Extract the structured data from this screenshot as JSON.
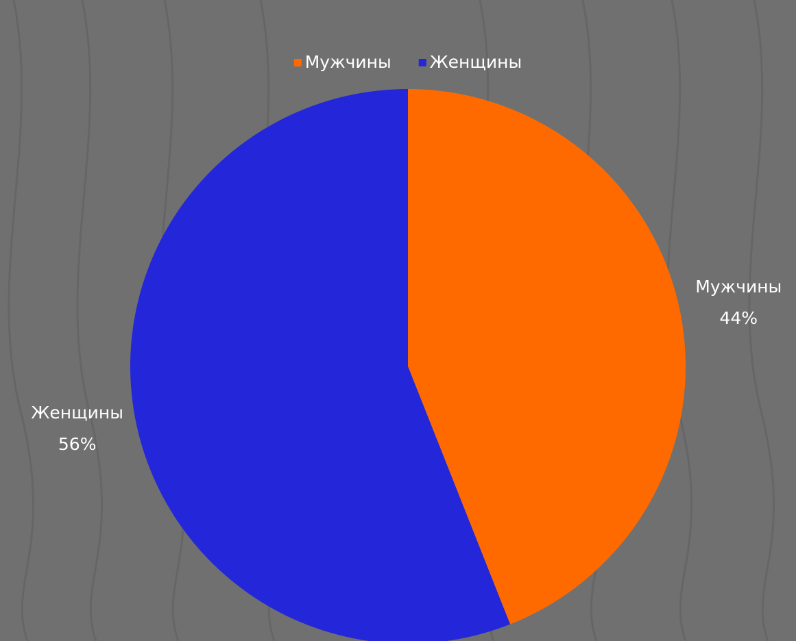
{
  "chart_data": {
    "type": "pie",
    "categories": [
      "Мужчины",
      "Женщины"
    ],
    "values": [
      44,
      56
    ],
    "value_labels": [
      "44%",
      "56%"
    ],
    "colors": [
      "#ff6a00",
      "#2326d9"
    ],
    "legend": "top"
  }
}
